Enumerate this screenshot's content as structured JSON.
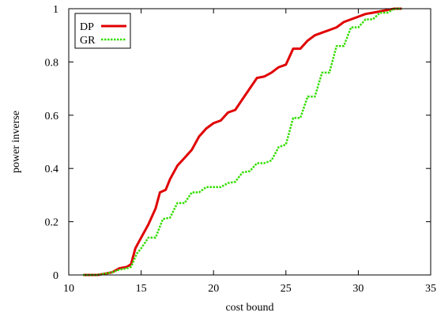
{
  "chart_data": {
    "type": "line",
    "xlabel": "cost bound",
    "ylabel": "power inverse",
    "xlim": [
      10,
      35
    ],
    "ylim": [
      0,
      1
    ],
    "xticks": [
      "10",
      "15",
      "20",
      "25",
      "30",
      "35"
    ],
    "yticks": [
      "0",
      "0.2",
      "0.4",
      "0.6",
      "0.8",
      "1"
    ],
    "legend_position": "top-left",
    "grid": false,
    "series": [
      {
        "name": "DP",
        "color": "#e00000",
        "style": "solid",
        "x": [
          11,
          12,
          12.5,
          13,
          13.5,
          14,
          14.3,
          14.6,
          15,
          15.5,
          16,
          16.3,
          16.7,
          17,
          17.5,
          18,
          18.5,
          19,
          19.5,
          20,
          20.5,
          21,
          21.5,
          22,
          22.5,
          23,
          23.5,
          24,
          24.5,
          25,
          25.5,
          26,
          26.5,
          27,
          27.5,
          28,
          28.5,
          29,
          29.5,
          30,
          30.5,
          31,
          31.5,
          32,
          32.5,
          33
        ],
        "y": [
          0,
          0,
          0.005,
          0.01,
          0.025,
          0.03,
          0.04,
          0.1,
          0.14,
          0.19,
          0.25,
          0.31,
          0.32,
          0.36,
          0.41,
          0.44,
          0.47,
          0.52,
          0.55,
          0.57,
          0.58,
          0.61,
          0.62,
          0.66,
          0.7,
          0.74,
          0.745,
          0.76,
          0.78,
          0.79,
          0.85,
          0.85,
          0.88,
          0.9,
          0.91,
          0.92,
          0.93,
          0.95,
          0.96,
          0.97,
          0.98,
          0.985,
          0.99,
          0.995,
          1,
          1
        ]
      },
      {
        "name": "GR",
        "color": "#33dd00",
        "style": "dotted",
        "x": [
          11,
          12,
          12.5,
          13,
          13.5,
          14,
          14.3,
          14.7,
          15,
          15.5,
          16,
          16.5,
          17,
          17.5,
          18,
          18.5,
          19,
          19.5,
          20,
          20.5,
          21,
          21.5,
          22,
          22.5,
          23,
          23.5,
          24,
          24.5,
          25,
          25.5,
          26,
          26.5,
          27,
          27.5,
          28,
          28.5,
          29,
          29.5,
          30,
          30.5,
          31,
          31.5,
          32,
          32.5,
          33
        ],
        "y": [
          0,
          0,
          0.005,
          0.01,
          0.02,
          0.025,
          0.03,
          0.08,
          0.1,
          0.14,
          0.14,
          0.21,
          0.215,
          0.27,
          0.27,
          0.31,
          0.31,
          0.33,
          0.33,
          0.33,
          0.345,
          0.35,
          0.385,
          0.39,
          0.42,
          0.42,
          0.43,
          0.48,
          0.49,
          0.59,
          0.59,
          0.67,
          0.67,
          0.76,
          0.76,
          0.86,
          0.86,
          0.93,
          0.93,
          0.96,
          0.96,
          0.985,
          0.985,
          1,
          1
        ]
      }
    ]
  }
}
